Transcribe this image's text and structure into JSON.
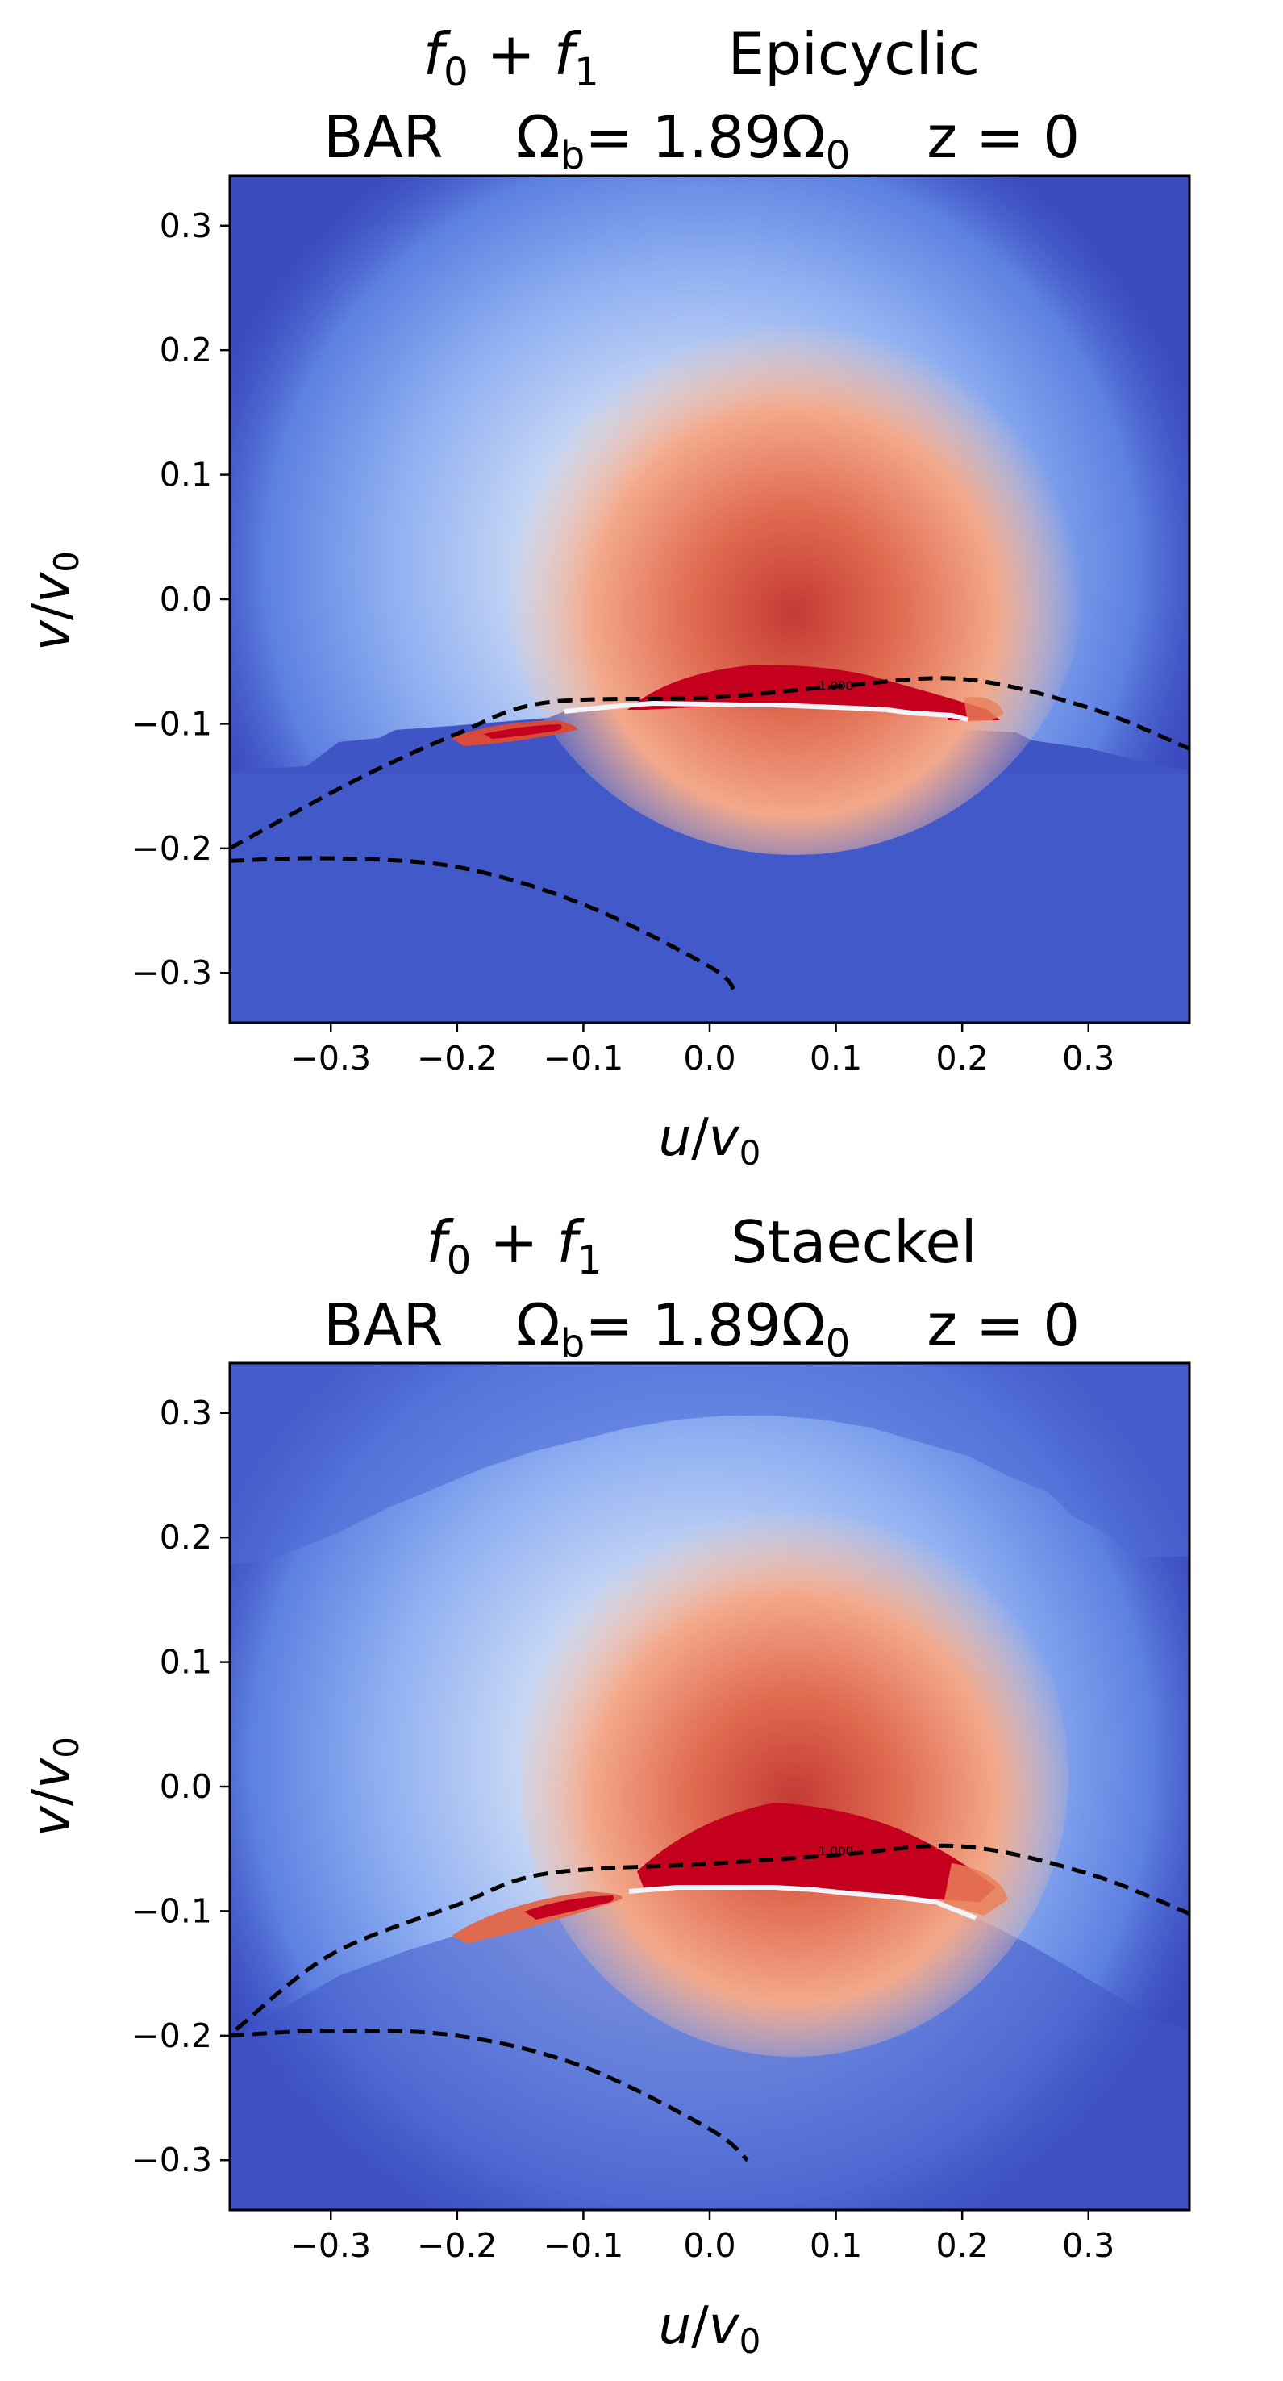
{
  "chart_data": [
    {
      "type": "heatmap",
      "title_line1": [
        "f",
        "0",
        " + ",
        "f",
        "1",
        "Epicyclic"
      ],
      "title_line2": [
        "BAR",
        "Ω",
        "b",
        "= 1.89",
        "Ω",
        "0",
        "z = 0"
      ],
      "xlabel": [
        "u",
        "/",
        "v",
        "0"
      ],
      "ylabel": [
        "v",
        "/",
        "v",
        "0"
      ],
      "xlim": [
        -0.38,
        0.38
      ],
      "ylim": [
        -0.34,
        0.34
      ],
      "xticks": [
        -0.3,
        -0.2,
        -0.1,
        0.0,
        0.1,
        0.2,
        0.3
      ],
      "xtick_labels": [
        "−0.3",
        "−0.2",
        "−0.1",
        "0.0",
        "0.1",
        "0.2",
        "0.3"
      ],
      "yticks": [
        0.3,
        0.2,
        0.1,
        0.0,
        -0.1,
        -0.2,
        -0.3
      ],
      "ytick_labels": [
        "0.3",
        "0.2",
        "0.1",
        "0.0",
        "−0.1",
        "−0.2",
        "−0.3"
      ],
      "contour_label": "1.000",
      "contour_label_at": [
        0.1,
        -0.073
      ],
      "colormap": "coolwarm",
      "colors": {
        "low": "#3b4cc0",
        "mid": "#dddddd",
        "high": "#b40426",
        "saturated": "#c5001f"
      },
      "resonance_upper": {
        "x": [
          -0.38,
          -0.28,
          -0.2,
          -0.13,
          0.0,
          0.1,
          0.2,
          0.3,
          0.38
        ],
        "y": [
          -0.2,
          -0.145,
          -0.108,
          -0.083,
          -0.079,
          -0.07,
          -0.064,
          -0.087,
          -0.12
        ]
      },
      "resonance_lower": {
        "x": [
          -0.38,
          -0.3,
          -0.2,
          -0.1,
          0.0,
          0.02
        ],
        "y": [
          -0.21,
          -0.208,
          -0.215,
          -0.245,
          -0.295,
          -0.315
        ]
      }
    },
    {
      "type": "heatmap",
      "title_line1": [
        "f",
        "0",
        " + ",
        "f",
        "1",
        "Staeckel"
      ],
      "title_line2": [
        "BAR",
        "Ω",
        "b",
        "= 1.89",
        "Ω",
        "0",
        "z = 0"
      ],
      "xlabel": [
        "u",
        "/",
        "v",
        "0"
      ],
      "ylabel": [
        "v",
        "/",
        "v",
        "0"
      ],
      "xlim": [
        -0.38,
        0.38
      ],
      "ylim": [
        -0.34,
        0.34
      ],
      "xticks": [
        -0.3,
        -0.2,
        -0.1,
        0.0,
        0.1,
        0.2,
        0.3
      ],
      "xtick_labels": [
        "−0.3",
        "−0.2",
        "−0.1",
        "0.0",
        "0.1",
        "0.2",
        "0.3"
      ],
      "yticks": [
        0.3,
        0.2,
        0.1,
        0.0,
        -0.1,
        -0.2,
        -0.3
      ],
      "ytick_labels": [
        "0.3",
        "0.2",
        "0.1",
        "0.0",
        "−0.1",
        "−0.2",
        "−0.3"
      ],
      "contour_label": "1.000",
      "contour_label_at": [
        0.1,
        -0.055
      ],
      "colormap": "coolwarm",
      "colors": {
        "low": "#3b4cc0",
        "mid": "#dddddd",
        "high": "#b40426",
        "saturated": "#c5001f"
      },
      "resonance_upper": {
        "x": [
          -0.375,
          -0.3,
          -0.2,
          -0.13,
          0.0,
          0.1,
          0.2,
          0.3,
          0.38
        ],
        "y": [
          -0.195,
          -0.135,
          -0.095,
          -0.07,
          -0.062,
          -0.055,
          -0.048,
          -0.07,
          -0.102
        ]
      },
      "resonance_lower": {
        "x": [
          -0.38,
          -0.3,
          -0.2,
          -0.1,
          0.0,
          0.03
        ],
        "y": [
          -0.2,
          -0.196,
          -0.2,
          -0.225,
          -0.275,
          -0.3
        ]
      }
    }
  ]
}
